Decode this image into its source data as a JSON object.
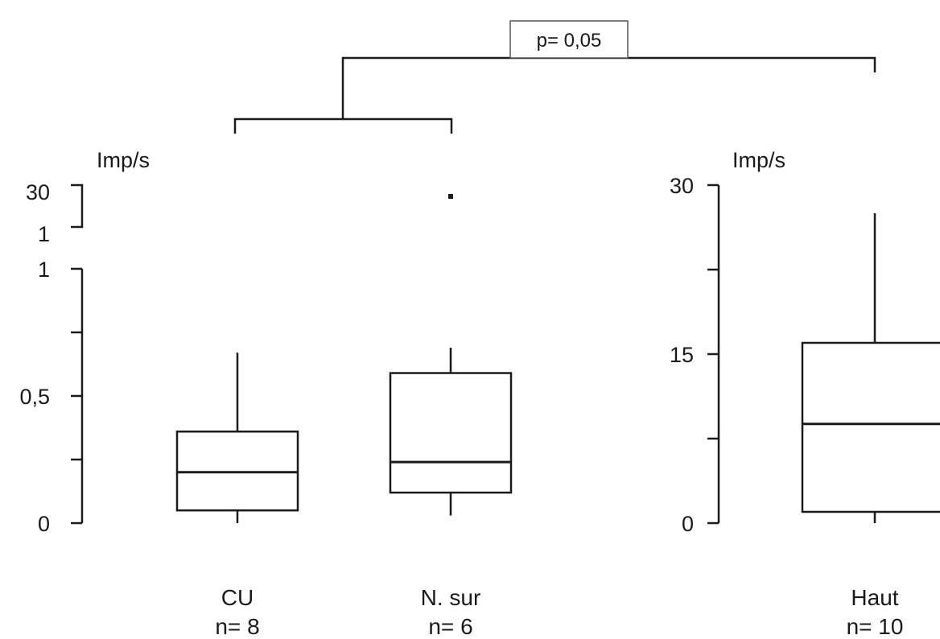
{
  "chart_data": [
    {
      "type": "box",
      "ylabel": "Imp/s",
      "ylim": [
        0,
        1
      ],
      "y_break": {
        "upper_ticks": [
          "30",
          "1"
        ],
        "note": "axis break between 1 and 30"
      },
      "yticks": [
        {
          "value": 0,
          "label": "0"
        },
        {
          "value": 0.25,
          "label": ""
        },
        {
          "value": 0.5,
          "label": "0,5"
        },
        {
          "value": 0.75,
          "label": ""
        },
        {
          "value": 1,
          "label": "1"
        }
      ],
      "series": [
        {
          "name": "CU",
          "n_label": "n= 8",
          "min": 0.0,
          "q1": 0.05,
          "median": 0.2,
          "q3": 0.36,
          "max": 0.67,
          "outliers": []
        },
        {
          "name": "N. sur",
          "n_label": "n= 6",
          "min": 0.03,
          "q1": 0.12,
          "median": 0.24,
          "q3": 0.59,
          "max": 0.69,
          "outlier_in_break": true
        }
      ]
    },
    {
      "type": "box",
      "ylabel": "Imp/s",
      "ylim": [
        0,
        30
      ],
      "yticks": [
        {
          "value": 0,
          "label": "0"
        },
        {
          "value": 7.5,
          "label": ""
        },
        {
          "value": 15,
          "label": "15"
        },
        {
          "value": 22.5,
          "label": ""
        },
        {
          "value": 30,
          "label": "30"
        }
      ],
      "series": [
        {
          "name": "Haut",
          "n_label": "n= 10",
          "min": 0.0,
          "q1": 1.0,
          "median": 8.8,
          "q3": 16.0,
          "max": 27.5,
          "outliers": []
        }
      ]
    }
  ],
  "annotation": {
    "p_value": "p= 0,05"
  }
}
